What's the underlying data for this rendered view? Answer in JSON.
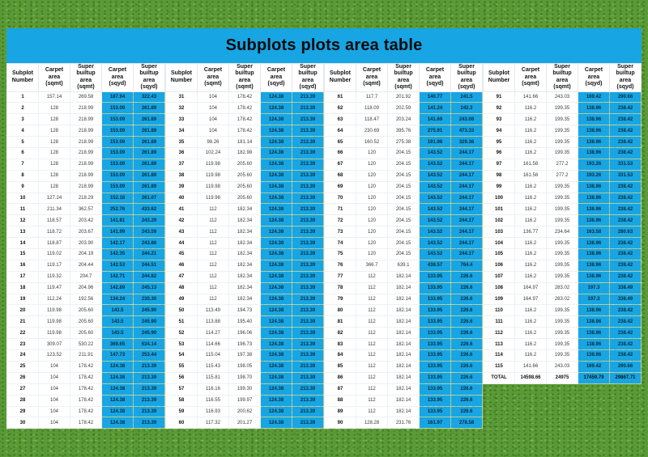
{
  "title": "Subplots plots area table",
  "colors": {
    "page_blue": "#18a5e3",
    "cell_white": "#ffffff",
    "text_black": "#0b0b0b",
    "grass_green": "#5a9a36"
  },
  "table": {
    "column_headers": [
      "Subplot Number",
      "Carpet area (sqmt)",
      "Super builtup area (sqmt)",
      "Carpet area (sqyd)",
      "Super builtup area (sqyd)"
    ],
    "groups": [
      {
        "rows": [
          [
            "1",
            "157.14",
            "269.58",
            "187.94",
            "322.43"
          ],
          [
            "2",
            "128",
            "218.99",
            "153.09",
            "261.89"
          ],
          [
            "3",
            "128",
            "218.99",
            "153.09",
            "261.89"
          ],
          [
            "4",
            "128",
            "218.99",
            "153.09",
            "261.89"
          ],
          [
            "5",
            "128",
            "218.99",
            "153.09",
            "261.89"
          ],
          [
            "6",
            "128",
            "218.99",
            "153.09",
            "261.89"
          ],
          [
            "7",
            "128",
            "218.99",
            "153.09",
            "261.89"
          ],
          [
            "8",
            "128",
            "218.99",
            "153.09",
            "261.89"
          ],
          [
            "9",
            "128",
            "218.99",
            "153.09",
            "261.89"
          ],
          [
            "10",
            "127.24",
            "218.29",
            "152.18",
            "261.07"
          ],
          [
            "11",
            "211.34",
            "362.57",
            "252.76",
            "433.62"
          ],
          [
            "12",
            "118.57",
            "203.42",
            "141.81",
            "243.29"
          ],
          [
            "13",
            "118.72",
            "203.67",
            "141.99",
            "243.59"
          ],
          [
            "14",
            "118.87",
            "203.90",
            "142.17",
            "243.86"
          ],
          [
            "15",
            "119.02",
            "204.19",
            "142.35",
            "244.21"
          ],
          [
            "16",
            "119.17",
            "204.44",
            "142.53",
            "244.51"
          ],
          [
            "17",
            "119.32",
            "204.7",
            "142.71",
            "244.82"
          ],
          [
            "18",
            "119.47",
            "204.96",
            "142.89",
            "245.13"
          ],
          [
            "19",
            "112.24",
            "192.56",
            "134.24",
            "230.30"
          ],
          [
            "20",
            "119.98",
            "205.60",
            "143.5",
            "245.90"
          ],
          [
            "21",
            "119.98",
            "205.60",
            "143.5",
            "245.90"
          ],
          [
            "22",
            "119.98",
            "205.60",
            "143.5",
            "245.90"
          ],
          [
            "23",
            "309.07",
            "530.22",
            "369.65",
            "634.14"
          ],
          [
            "24",
            "123.52",
            "211.91",
            "147.73",
            "253.44"
          ],
          [
            "25",
            "104",
            "178.42",
            "124.38",
            "213.39"
          ],
          [
            "26",
            "104",
            "178.42",
            "124.38",
            "213.39"
          ],
          [
            "27",
            "104",
            "178.42",
            "124.38",
            "213.39"
          ],
          [
            "28",
            "104",
            "178.42",
            "124.38",
            "213.39"
          ],
          [
            "29",
            "104",
            "178.42",
            "124.38",
            "213.39"
          ],
          [
            "30",
            "104",
            "178.42",
            "124.38",
            "213.39"
          ]
        ]
      },
      {
        "rows": [
          [
            "31",
            "104",
            "178.42",
            "124.38",
            "213.39"
          ],
          [
            "32",
            "104",
            "178.42",
            "124.38",
            "213.39"
          ],
          [
            "33",
            "104",
            "178.42",
            "124.38",
            "213.39"
          ],
          [
            "34",
            "104",
            "178.42",
            "124.38",
            "213.39"
          ],
          [
            "35",
            "98.26",
            "181.14",
            "124.38",
            "213.39"
          ],
          [
            "36",
            "102.24",
            "182.98",
            "124.38",
            "213.39"
          ],
          [
            "37",
            "119.98",
            "205.60",
            "124.38",
            "213.39"
          ],
          [
            "38",
            "119.98",
            "205.60",
            "124.38",
            "213.39"
          ],
          [
            "39",
            "119.98",
            "205.60",
            "124.38",
            "213.39"
          ],
          [
            "40",
            "119.98",
            "205.60",
            "124.38",
            "213.39"
          ],
          [
            "41",
            "112",
            "182.34",
            "124.38",
            "213.39"
          ],
          [
            "42",
            "112",
            "182.34",
            "124.38",
            "213.39"
          ],
          [
            "43",
            "112",
            "182.34",
            "124.38",
            "213.39"
          ],
          [
            "44",
            "112",
            "182.34",
            "124.38",
            "213.39"
          ],
          [
            "45",
            "112",
            "182.34",
            "124.38",
            "213.39"
          ],
          [
            "46",
            "112",
            "182.34",
            "124.38",
            "213.39"
          ],
          [
            "47",
            "112",
            "182.34",
            "124.38",
            "213.39"
          ],
          [
            "48",
            "112",
            "182.34",
            "124.38",
            "213.39"
          ],
          [
            "49",
            "112",
            "182.34",
            "124.38",
            "213.39"
          ],
          [
            "50",
            "113.49",
            "194.73",
            "124.38",
            "213.39"
          ],
          [
            "51",
            "113.88",
            "195.40",
            "124.38",
            "213.39"
          ],
          [
            "52",
            "114.27",
            "196.06",
            "124.38",
            "213.39"
          ],
          [
            "53",
            "114.66",
            "196.73",
            "124.38",
            "213.39"
          ],
          [
            "54",
            "115.04",
            "197.38",
            "124.38",
            "213.39"
          ],
          [
            "55",
            "115.43",
            "198.05",
            "124.38",
            "213.39"
          ],
          [
            "56",
            "115.81",
            "198.70",
            "124.38",
            "213.39"
          ],
          [
            "57",
            "116.16",
            "199.30",
            "124.38",
            "213.39"
          ],
          [
            "58",
            "116.55",
            "199.97",
            "124.38",
            "213.39"
          ],
          [
            "59",
            "116.93",
            "200.62",
            "124.38",
            "213.39"
          ],
          [
            "60",
            "117.32",
            "201.27",
            "124.38",
            "213.39"
          ]
        ]
      },
      {
        "rows": [
          [
            "61",
            "117.7",
            "201.92",
            "140.77",
            "241.5"
          ],
          [
            "62",
            "118.09",
            "202.59",
            "141.24",
            "242.3"
          ],
          [
            "63",
            "118.47",
            "203.24",
            "141.69",
            "243.08"
          ],
          [
            "64",
            "230.69",
            "395.76",
            "275.91",
            "473.33"
          ],
          [
            "65",
            "160.52",
            "275.38",
            "191.98",
            "329.36"
          ],
          [
            "66",
            "120",
            "204.15",
            "143.52",
            "244.17"
          ],
          [
            "67",
            "120",
            "204.15",
            "143.52",
            "244.17"
          ],
          [
            "68",
            "120",
            "204.15",
            "143.52",
            "244.17"
          ],
          [
            "69",
            "120",
            "204.15",
            "143.52",
            "244.17"
          ],
          [
            "70",
            "120",
            "204.15",
            "143.52",
            "244.17"
          ],
          [
            "71",
            "120",
            "204.15",
            "143.52",
            "244.17"
          ],
          [
            "72",
            "120",
            "204.15",
            "143.52",
            "244.17"
          ],
          [
            "73",
            "120",
            "204.15",
            "143.52",
            "244.17"
          ],
          [
            "74",
            "120",
            "204.15",
            "143.52",
            "244.17"
          ],
          [
            "75",
            "120",
            "204.15",
            "143.52",
            "244.17"
          ],
          [
            "76",
            "366.7",
            "639.1",
            "438.57",
            "764.4"
          ],
          [
            "77",
            "112",
            "182.14",
            "133.95",
            "226.6"
          ],
          [
            "78",
            "112",
            "182.14",
            "133.95",
            "226.6"
          ],
          [
            "79",
            "112",
            "182.14",
            "133.95",
            "226.6"
          ],
          [
            "80",
            "112",
            "182.14",
            "133.95",
            "226.6"
          ],
          [
            "81",
            "112",
            "182.14",
            "133.95",
            "226.6"
          ],
          [
            "82",
            "112",
            "182.14",
            "133.95",
            "226.6"
          ],
          [
            "83",
            "112",
            "182.14",
            "133.95",
            "226.6"
          ],
          [
            "84",
            "112",
            "182.14",
            "133.95",
            "226.6"
          ],
          [
            "85",
            "112",
            "182.14",
            "133.95",
            "226.6"
          ],
          [
            "86",
            "112",
            "182.14",
            "133.95",
            "226.6"
          ],
          [
            "87",
            "112",
            "182.14",
            "133.95",
            "226.6"
          ],
          [
            "88",
            "112",
            "182.14",
            "133.95",
            "226.6"
          ],
          [
            "89",
            "112",
            "182.14",
            "133.95",
            "226.6"
          ],
          [
            "90",
            "128.28",
            "231.76",
            "161.97",
            "278.58"
          ]
        ]
      },
      {
        "rows": [
          [
            "91",
            "141.66",
            "243.03",
            "169.42",
            "290.66"
          ],
          [
            "92",
            "116.2",
            "199.35",
            "138.96",
            "238.42"
          ],
          [
            "93",
            "116.2",
            "199.35",
            "138.96",
            "238.42"
          ],
          [
            "94",
            "116.2",
            "199.35",
            "138.96",
            "238.42"
          ],
          [
            "95",
            "116.2",
            "199.35",
            "138.96",
            "238.42"
          ],
          [
            "96",
            "116.2",
            "199.35",
            "138.96",
            "238.42"
          ],
          [
            "97",
            "161.58",
            "277.2",
            "193.26",
            "331.53"
          ],
          [
            "98",
            "161.58",
            "277.2",
            "193.26",
            "331.53"
          ],
          [
            "99",
            "116.2",
            "199.35",
            "138.96",
            "238.42"
          ],
          [
            "100",
            "116.2",
            "199.35",
            "138.96",
            "238.42"
          ],
          [
            "101",
            "116.2",
            "199.35",
            "138.96",
            "238.42"
          ],
          [
            "102",
            "116.2",
            "199.35",
            "138.96",
            "238.42"
          ],
          [
            "103",
            "136.77",
            "234.64",
            "163.58",
            "280.63"
          ],
          [
            "104",
            "116.2",
            "199.35",
            "138.96",
            "238.42"
          ],
          [
            "105",
            "116.2",
            "199.35",
            "138.96",
            "238.42"
          ],
          [
            "106",
            "116.2",
            "199.35",
            "138.96",
            "238.42"
          ],
          [
            "107",
            "116.2",
            "199.35",
            "138.96",
            "238.42"
          ],
          [
            "108",
            "164.97",
            "283.02",
            "197.3",
            "338.49"
          ],
          [
            "109",
            "164.97",
            "283.02",
            "197.3",
            "338.49"
          ],
          [
            "110",
            "116.2",
            "199.35",
            "138.96",
            "238.42"
          ],
          [
            "111",
            "116.2",
            "199.35",
            "138.96",
            "238.42"
          ],
          [
            "112",
            "116.2",
            "199.35",
            "138.96",
            "238.42"
          ],
          [
            "113",
            "116.2",
            "199.35",
            "138.96",
            "238.42"
          ],
          [
            "114",
            "116.2",
            "199.35",
            "138.96",
            "238.42"
          ],
          [
            "115",
            "141.66",
            "243.03",
            "169.42",
            "290.66"
          ]
        ]
      }
    ],
    "total_row": [
      "TOTAL",
      "14598.66",
      "24975",
      "17459.79",
      "29867.71"
    ]
  }
}
